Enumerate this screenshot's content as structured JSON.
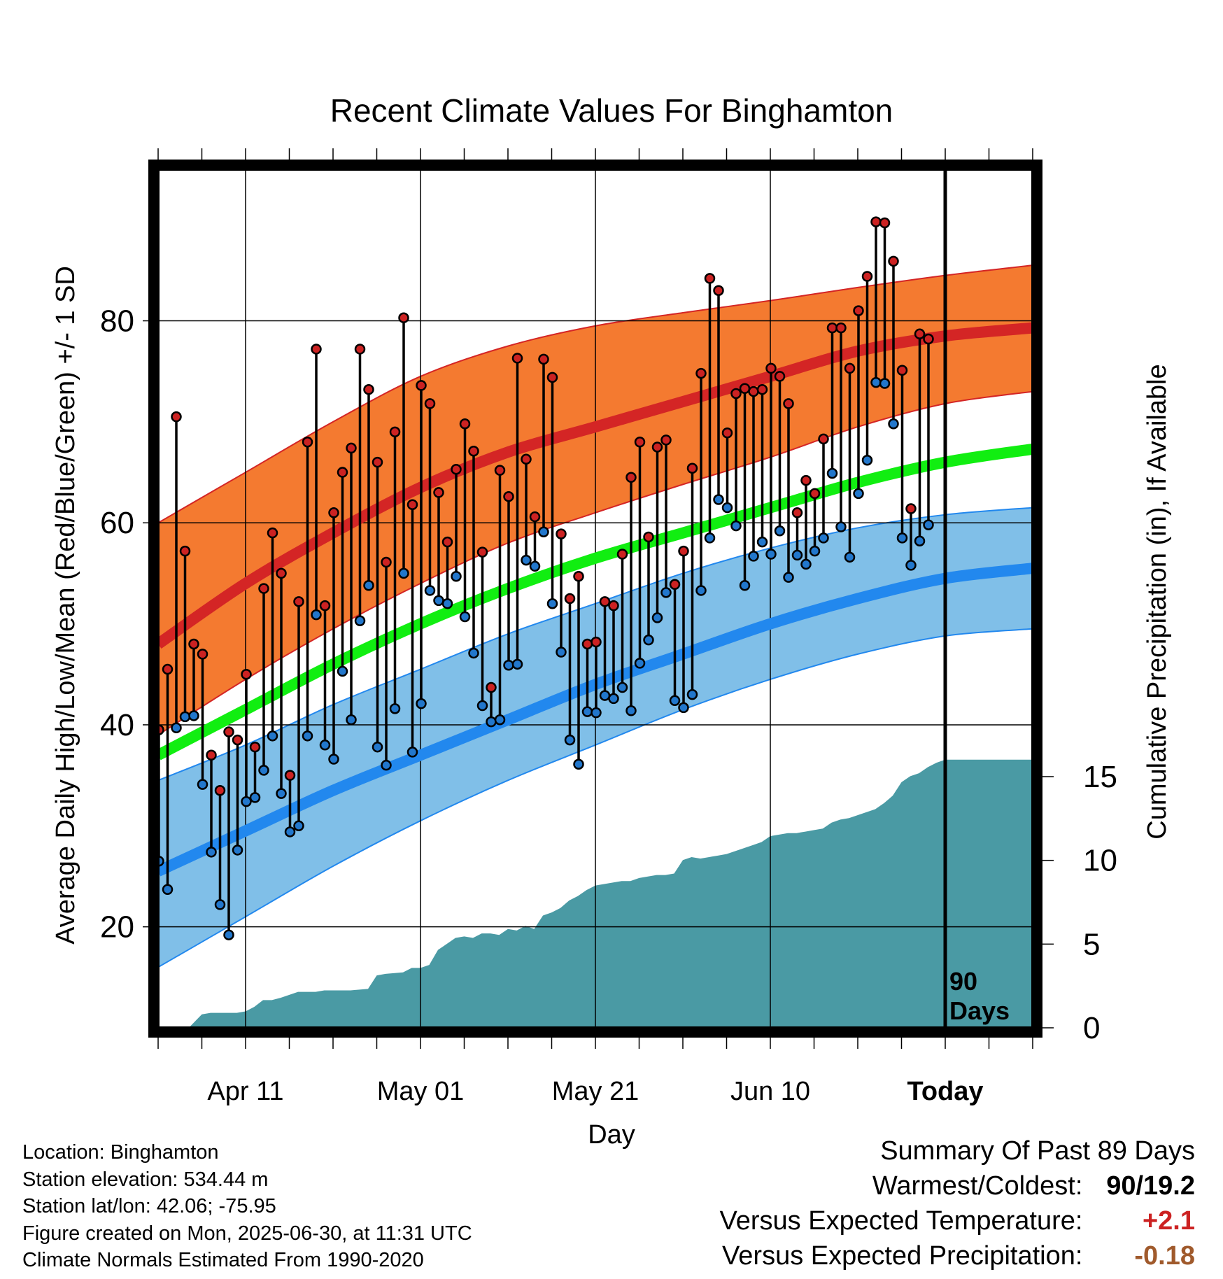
{
  "chart_data": {
    "type": "line",
    "title": "Recent Climate Values For Binghamton",
    "xlabel": "Day",
    "ylabel": "Average Daily High/Low/Mean (Red/Blue/Green) +/- 1 SD",
    "y2label": "Cumulative Precipitation (in), If Available",
    "x_range_days": [
      0,
      100
    ],
    "ylim": [
      10,
      95
    ],
    "y2lim": [
      0,
      30
    ],
    "yticks": [
      20,
      40,
      60,
      80
    ],
    "y2ticks": [
      0,
      5,
      10,
      15
    ],
    "x_tick_labels": [
      {
        "day": 10,
        "label": "Apr 11"
      },
      {
        "day": 30,
        "label": "May 01"
      },
      {
        "day": 50,
        "label": "May 21"
      },
      {
        "day": 70,
        "label": "Jun 10"
      },
      {
        "day": 90,
        "label": "Today"
      }
    ],
    "today_day": 90,
    "today_label": "90 Days",
    "grid": true,
    "colors": {
      "high_band": "#f47a30",
      "high_mean": "#d42525",
      "low_band": "#80bfe8",
      "low_mean": "#2288ee",
      "mean": "#11ee11",
      "precip": "#4a9aa4",
      "high_marker": "#cc2222",
      "low_marker": "#2277cc"
    },
    "normals": {
      "days": [
        0,
        10,
        20,
        30,
        40,
        50,
        60,
        70,
        80,
        90,
        100
      ],
      "high_mean": [
        48,
        54,
        59,
        63.5,
        67,
        69.5,
        72,
        74.5,
        77,
        78.5,
        79.3
      ],
      "high_plus_sd": [
        60,
        65,
        70,
        74.5,
        77.5,
        79.5,
        80.8,
        82,
        83.3,
        84.5,
        85.5
      ],
      "high_minus_sd": [
        39,
        44.5,
        49.5,
        54,
        58,
        61,
        63.8,
        66.5,
        69.5,
        71.8,
        73
      ],
      "low_mean": [
        25.5,
        29.5,
        33.5,
        37,
        40.5,
        44,
        47,
        50,
        52.5,
        54.5,
        55.5
      ],
      "low_plus_sd": [
        34.5,
        38,
        42,
        45.5,
        49,
        52,
        55,
        57.5,
        59.5,
        60.8,
        61.5
      ],
      "low_minus_sd": [
        16,
        21,
        26,
        30.5,
        34.5,
        38,
        41.5,
        44.5,
        47,
        48.8,
        49.5
      ],
      "mean": [
        37,
        41.5,
        46,
        50,
        53.5,
        56.5,
        59,
        61.5,
        64,
        66,
        67.3
      ]
    },
    "observed": {
      "days": [
        0,
        1,
        2,
        3,
        4,
        5,
        6,
        7,
        8,
        9,
        10,
        11,
        12,
        13,
        14,
        15,
        16,
        17,
        18,
        19,
        20,
        21,
        22,
        23,
        24,
        25,
        26,
        27,
        28,
        29,
        30,
        31,
        32,
        33,
        34,
        35,
        36,
        37,
        38,
        39,
        40,
        41,
        42,
        43,
        44,
        45,
        46,
        47,
        48,
        49,
        50,
        51,
        52,
        53,
        54,
        55,
        56,
        57,
        58,
        59,
        60,
        61,
        62,
        63,
        64,
        65,
        66,
        67,
        68,
        69,
        70,
        71,
        72,
        73,
        74,
        75,
        76,
        77,
        78,
        79,
        80,
        81,
        82,
        83,
        84,
        85,
        86,
        87,
        88,
        89
      ],
      "highs": [
        39.5,
        45.5,
        70.5,
        57.2,
        48,
        47,
        37,
        33.5,
        39.3,
        38.5,
        45,
        37.8,
        53.5,
        59,
        55,
        35,
        52.2,
        68,
        77.2,
        51.8,
        61,
        65,
        67.4,
        77.2,
        73.2,
        66,
        56.1,
        69,
        80.3,
        61.8,
        73.6,
        71.8,
        63,
        58.1,
        65.3,
        69.8,
        67.1,
        57.1,
        43.7,
        65.2,
        62.6,
        76.3,
        66.3,
        60.6,
        76.2,
        74.4,
        58.9,
        52.5,
        54.7,
        48,
        48.2,
        52.2,
        51.8,
        56.9,
        64.5,
        68,
        58.6,
        67.5,
        68.2,
        53.9,
        57.2,
        65.4,
        74.8,
        84.2,
        83,
        68.9,
        72.8,
        73.3,
        73,
        73.2,
        75.3,
        74.5,
        71.8,
        61,
        64.2,
        62.9,
        68.3,
        79.3,
        79.3,
        75.3,
        81,
        84.4,
        89.8,
        89.7,
        85.9,
        75.1,
        61.4,
        78.7,
        78.2
      ],
      "lows": [
        26.5,
        23.7,
        39.7,
        40.8,
        40.9,
        34.1,
        27.4,
        22.2,
        19.2,
        27.6,
        32.4,
        32.8,
        35.5,
        38.9,
        33.2,
        29.4,
        30,
        38.9,
        50.9,
        38,
        36.6,
        45.3,
        40.5,
        50.3,
        53.8,
        37.8,
        36,
        41.6,
        55,
        37.3,
        42.1,
        53.3,
        52.3,
        52,
        54.7,
        50.7,
        47.1,
        41.9,
        40.3,
        40.5,
        45.9,
        46,
        56.3,
        55.7,
        59.1,
        52,
        47.2,
        38.5,
        36.1,
        41.3,
        41.2,
        42.9,
        42.6,
        43.7,
        41.4,
        46.1,
        48.4,
        50.6,
        53.1,
        42.4,
        41.7,
        43,
        53.3,
        58.5,
        62.3,
        61.5,
        59.7,
        53.8,
        56.7,
        58.1,
        56.9,
        59.2,
        54.6,
        56.8,
        55.9,
        57.2,
        58.5,
        64.9,
        59.6,
        56.6,
        62.9,
        66.2,
        73.9,
        73.8,
        69.8,
        58.5,
        55.8,
        58.2,
        59.8
      ]
    },
    "cumulative_precip": {
      "days": [
        0,
        1,
        2,
        3,
        3.5,
        5,
        6,
        7,
        8,
        9,
        10,
        11,
        12,
        13,
        14,
        15,
        16,
        17,
        18,
        19,
        20,
        22,
        24,
        25,
        26,
        28,
        29,
        30,
        31,
        32,
        33,
        34,
        35,
        36,
        37,
        38,
        39,
        40,
        41,
        42,
        43,
        44,
        45,
        46,
        47,
        48,
        49,
        50,
        51,
        52,
        53,
        54,
        55,
        56,
        57,
        58,
        59,
        60,
        61,
        62,
        63,
        64,
        65,
        66,
        67,
        68,
        69,
        70,
        71,
        72,
        73,
        74,
        75,
        76,
        77,
        78,
        79,
        80,
        81,
        82,
        83,
        84,
        85,
        86,
        87,
        88,
        89,
        90,
        100
      ],
      "values": [
        0,
        0,
        0,
        0,
        0,
        0.9,
        1,
        1,
        1,
        1,
        1.1,
        1.4,
        1.85,
        1.85,
        2,
        2.2,
        2.4,
        2.4,
        2.4,
        2.5,
        2.5,
        2.5,
        2.6,
        3.5,
        3.6,
        3.7,
        4,
        4,
        4.2,
        5.2,
        5.6,
        6,
        6.1,
        6,
        6.3,
        6.3,
        6.2,
        6.6,
        6.5,
        6.8,
        6.6,
        7.5,
        7.7,
        8,
        8.5,
        8.8,
        9.2,
        9.5,
        9.6,
        9.7,
        9.8,
        9.8,
        10,
        10.1,
        10.2,
        10.2,
        10.3,
        11.2,
        11.4,
        11.3,
        11.4,
        11.5,
        11.6,
        11.8,
        12,
        12.2,
        12.4,
        12.8,
        12.9,
        13,
        13,
        13.1,
        13.2,
        13.3,
        13.7,
        13.9,
        14,
        14.2,
        14.4,
        14.6,
        15,
        15.5,
        16.4,
        16.8,
        17,
        17.4,
        17.7,
        17.9,
        17.9
      ]
    }
  },
  "summary": {
    "heading": "Summary Of Past 89 Days",
    "rows": [
      {
        "label": "Warmest/Coldest:",
        "value": "90/19.2",
        "color": "#000000"
      },
      {
        "label": "Versus Expected Temperature:",
        "value": "+2.1",
        "color": "#cc2222"
      },
      {
        "label": "Versus Expected Precipitation:",
        "value": "-0.18",
        "color": "#a05a2c"
      }
    ]
  },
  "info": {
    "location": "Location: Binghamton",
    "elevation": "Station elevation: 534.44 m",
    "latlon": "Station lat/lon: 42.06; -75.95",
    "created": "Figure created on Mon, 2025-06-30, at 11:31 UTC",
    "normals_note": "Climate Normals Estimated From 1990-2020"
  }
}
